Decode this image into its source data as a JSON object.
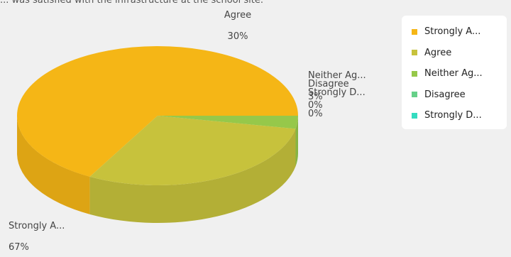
{
  "title": "... was satisfied with the infrastructure at the school site.",
  "chart_data": {
    "type": "pie",
    "style": "3d",
    "title": "... was satisfied with the infrastructure at the school site.",
    "categories": [
      "Strongly A...",
      "Agree",
      "Neither Ag...",
      "Disagree",
      "Strongly D..."
    ],
    "values": [
      67,
      30,
      3,
      0,
      0
    ],
    "value_labels": [
      "67%",
      "30%",
      "3%",
      "0%",
      "0%"
    ],
    "colors": [
      "#f5b616",
      "#c7c23c",
      "#96c84a",
      "#66d089",
      "#34dcc0"
    ],
    "legend": "right"
  }
}
